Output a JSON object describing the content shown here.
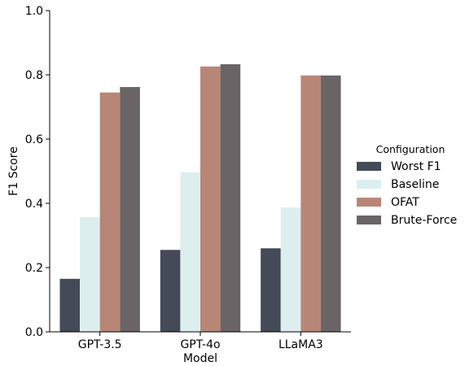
{
  "chart_data": {
    "type": "bar",
    "categories": [
      "GPT-3.5",
      "GPT-4o",
      "LLaMA3"
    ],
    "series": [
      {
        "name": "Worst F1",
        "values": [
          0.165,
          0.255,
          0.26
        ],
        "color": "#444a58"
      },
      {
        "name": "Baseline",
        "values": [
          0.357,
          0.497,
          0.387
        ],
        "color": "#ddeeee"
      },
      {
        "name": "OFAT",
        "values": [
          0.745,
          0.826,
          0.798
        ],
        "color": "#b88677"
      },
      {
        "name": "Brute-Force",
        "values": [
          0.762,
          0.833,
          0.798
        ],
        "color": "#6b6466"
      }
    ],
    "xlabel": "Model",
    "ylabel": "F1 Score",
    "ylim": [
      0.0,
      1.0
    ],
    "yticks": [
      "0.0",
      "0.2",
      "0.4",
      "0.6",
      "0.8",
      "1.0"
    ],
    "legend": {
      "title": "Configuration",
      "placement": "right"
    },
    "grid": false
  }
}
